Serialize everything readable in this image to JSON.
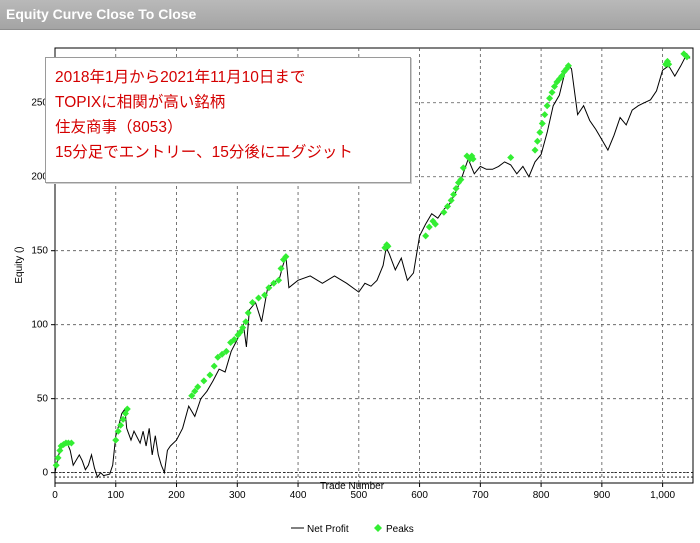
{
  "window": {
    "title": "Equity Curve Close To Close"
  },
  "annotation": {
    "lines": [
      "2018年1月から2021年11月10日まで",
      "TOPIXに相関が高い銘柄",
      "住友商事（8053）",
      "15分足でエントリー、15分後にエグジット"
    ],
    "color": "#d40000"
  },
  "chart_data": {
    "type": "line",
    "title": "",
    "xlabel": "Trade Number",
    "ylabel": "Equity ()",
    "xlim": [
      0,
      1050
    ],
    "ylim": [
      -7,
      287
    ],
    "x_ticks": [
      0,
      100,
      200,
      300,
      400,
      500,
      600,
      700,
      800,
      900,
      1000
    ],
    "x_tick_labels": [
      "0",
      "100",
      "200",
      "300",
      "400",
      "500",
      "600",
      "700",
      "800",
      "900",
      "1,000"
    ],
    "y_ticks": [
      0,
      50,
      100,
      150,
      200,
      250
    ],
    "y_tick_labels": [
      "0",
      "50",
      "100",
      "150",
      "200",
      "250"
    ],
    "grid": true,
    "legend_position": "bottom-center",
    "series": [
      {
        "name": "Net Profit",
        "kind": "line",
        "color": "#000000",
        "x": [
          0,
          5,
          10,
          20,
          25,
          30,
          40,
          45,
          50,
          55,
          60,
          65,
          70,
          75,
          80,
          90,
          95,
          100,
          105,
          110,
          115,
          118,
          125,
          130,
          140,
          145,
          150,
          155,
          160,
          165,
          170,
          175,
          180,
          185,
          190,
          200,
          210,
          220,
          230,
          240,
          250,
          260,
          270,
          280,
          290,
          300,
          310,
          315,
          320,
          330,
          340,
          350,
          360,
          370,
          375,
          380,
          385,
          400,
          420,
          440,
          460,
          480,
          500,
          510,
          520,
          530,
          540,
          545,
          550,
          560,
          570,
          580,
          590,
          600,
          610,
          620,
          630,
          640,
          650,
          660,
          670,
          680,
          690,
          700,
          710,
          720,
          730,
          740,
          750,
          760,
          770,
          780,
          790,
          800,
          810,
          820,
          830,
          840,
          845,
          850,
          860,
          870,
          880,
          890,
          900,
          910,
          920,
          930,
          940,
          950,
          960,
          970,
          980,
          990,
          1000,
          1010,
          1020,
          1030,
          1040,
          1045
        ],
        "y": [
          0,
          10,
          18,
          20,
          15,
          5,
          12,
          8,
          2,
          5,
          12,
          3,
          -3,
          0,
          -2,
          -1,
          5,
          25,
          32,
          40,
          43,
          30,
          22,
          28,
          20,
          28,
          18,
          30,
          12,
          25,
          12,
          5,
          0,
          15,
          18,
          22,
          30,
          45,
          38,
          50,
          55,
          62,
          70,
          68,
          82,
          90,
          100,
          85,
          110,
          115,
          102,
          125,
          128,
          132,
          140,
          146,
          125,
          130,
          133,
          128,
          133,
          128,
          122,
          128,
          126,
          130,
          140,
          152,
          148,
          137,
          145,
          130,
          135,
          160,
          168,
          175,
          172,
          178,
          182,
          190,
          200,
          212,
          202,
          207,
          205,
          205,
          207,
          210,
          208,
          202,
          207,
          200,
          210,
          215,
          230,
          248,
          255,
          272,
          275,
          273,
          242,
          248,
          238,
          232,
          225,
          218,
          228,
          240,
          235,
          245,
          248,
          250,
          252,
          258,
          272,
          275,
          268,
          275,
          283,
          280
        ]
      },
      {
        "name": "Peaks",
        "kind": "markers",
        "color": "#33ee33",
        "x": [
          2,
          5,
          8,
          10,
          14,
          18,
          22,
          27,
          100,
          104,
          108,
          112,
          116,
          119,
          225,
          230,
          235,
          245,
          255,
          262,
          268,
          275,
          282,
          289,
          295,
          301,
          305,
          309,
          314,
          318,
          325,
          335,
          345,
          352,
          360,
          368,
          372,
          376,
          380,
          543,
          546,
          548,
          610,
          616,
          622,
          626,
          640,
          646,
          652,
          656,
          660,
          664,
          668,
          672,
          678,
          683,
          686,
          688,
          750,
          790,
          794,
          798,
          802,
          806,
          810,
          814,
          818,
          822,
          826,
          830,
          834,
          838,
          842,
          845,
          1005,
          1008,
          1010,
          1035,
          1040
        ],
        "y": [
          5,
          10,
          15,
          18,
          19,
          20,
          20,
          20,
          22,
          28,
          32,
          36,
          40,
          43,
          52,
          55,
          58,
          62,
          66,
          72,
          78,
          80,
          82,
          88,
          90,
          93,
          95,
          98,
          102,
          108,
          115,
          118,
          120,
          125,
          128,
          130,
          138,
          144,
          146,
          152,
          154,
          153,
          160,
          166,
          170,
          168,
          176,
          180,
          184,
          188,
          192,
          196,
          198,
          206,
          214,
          212,
          214,
          212,
          213,
          218,
          224,
          230,
          236,
          242,
          248,
          253,
          257,
          261,
          264,
          266,
          268,
          271,
          273,
          275,
          276,
          278,
          276,
          283,
          281
        ]
      }
    ]
  }
}
